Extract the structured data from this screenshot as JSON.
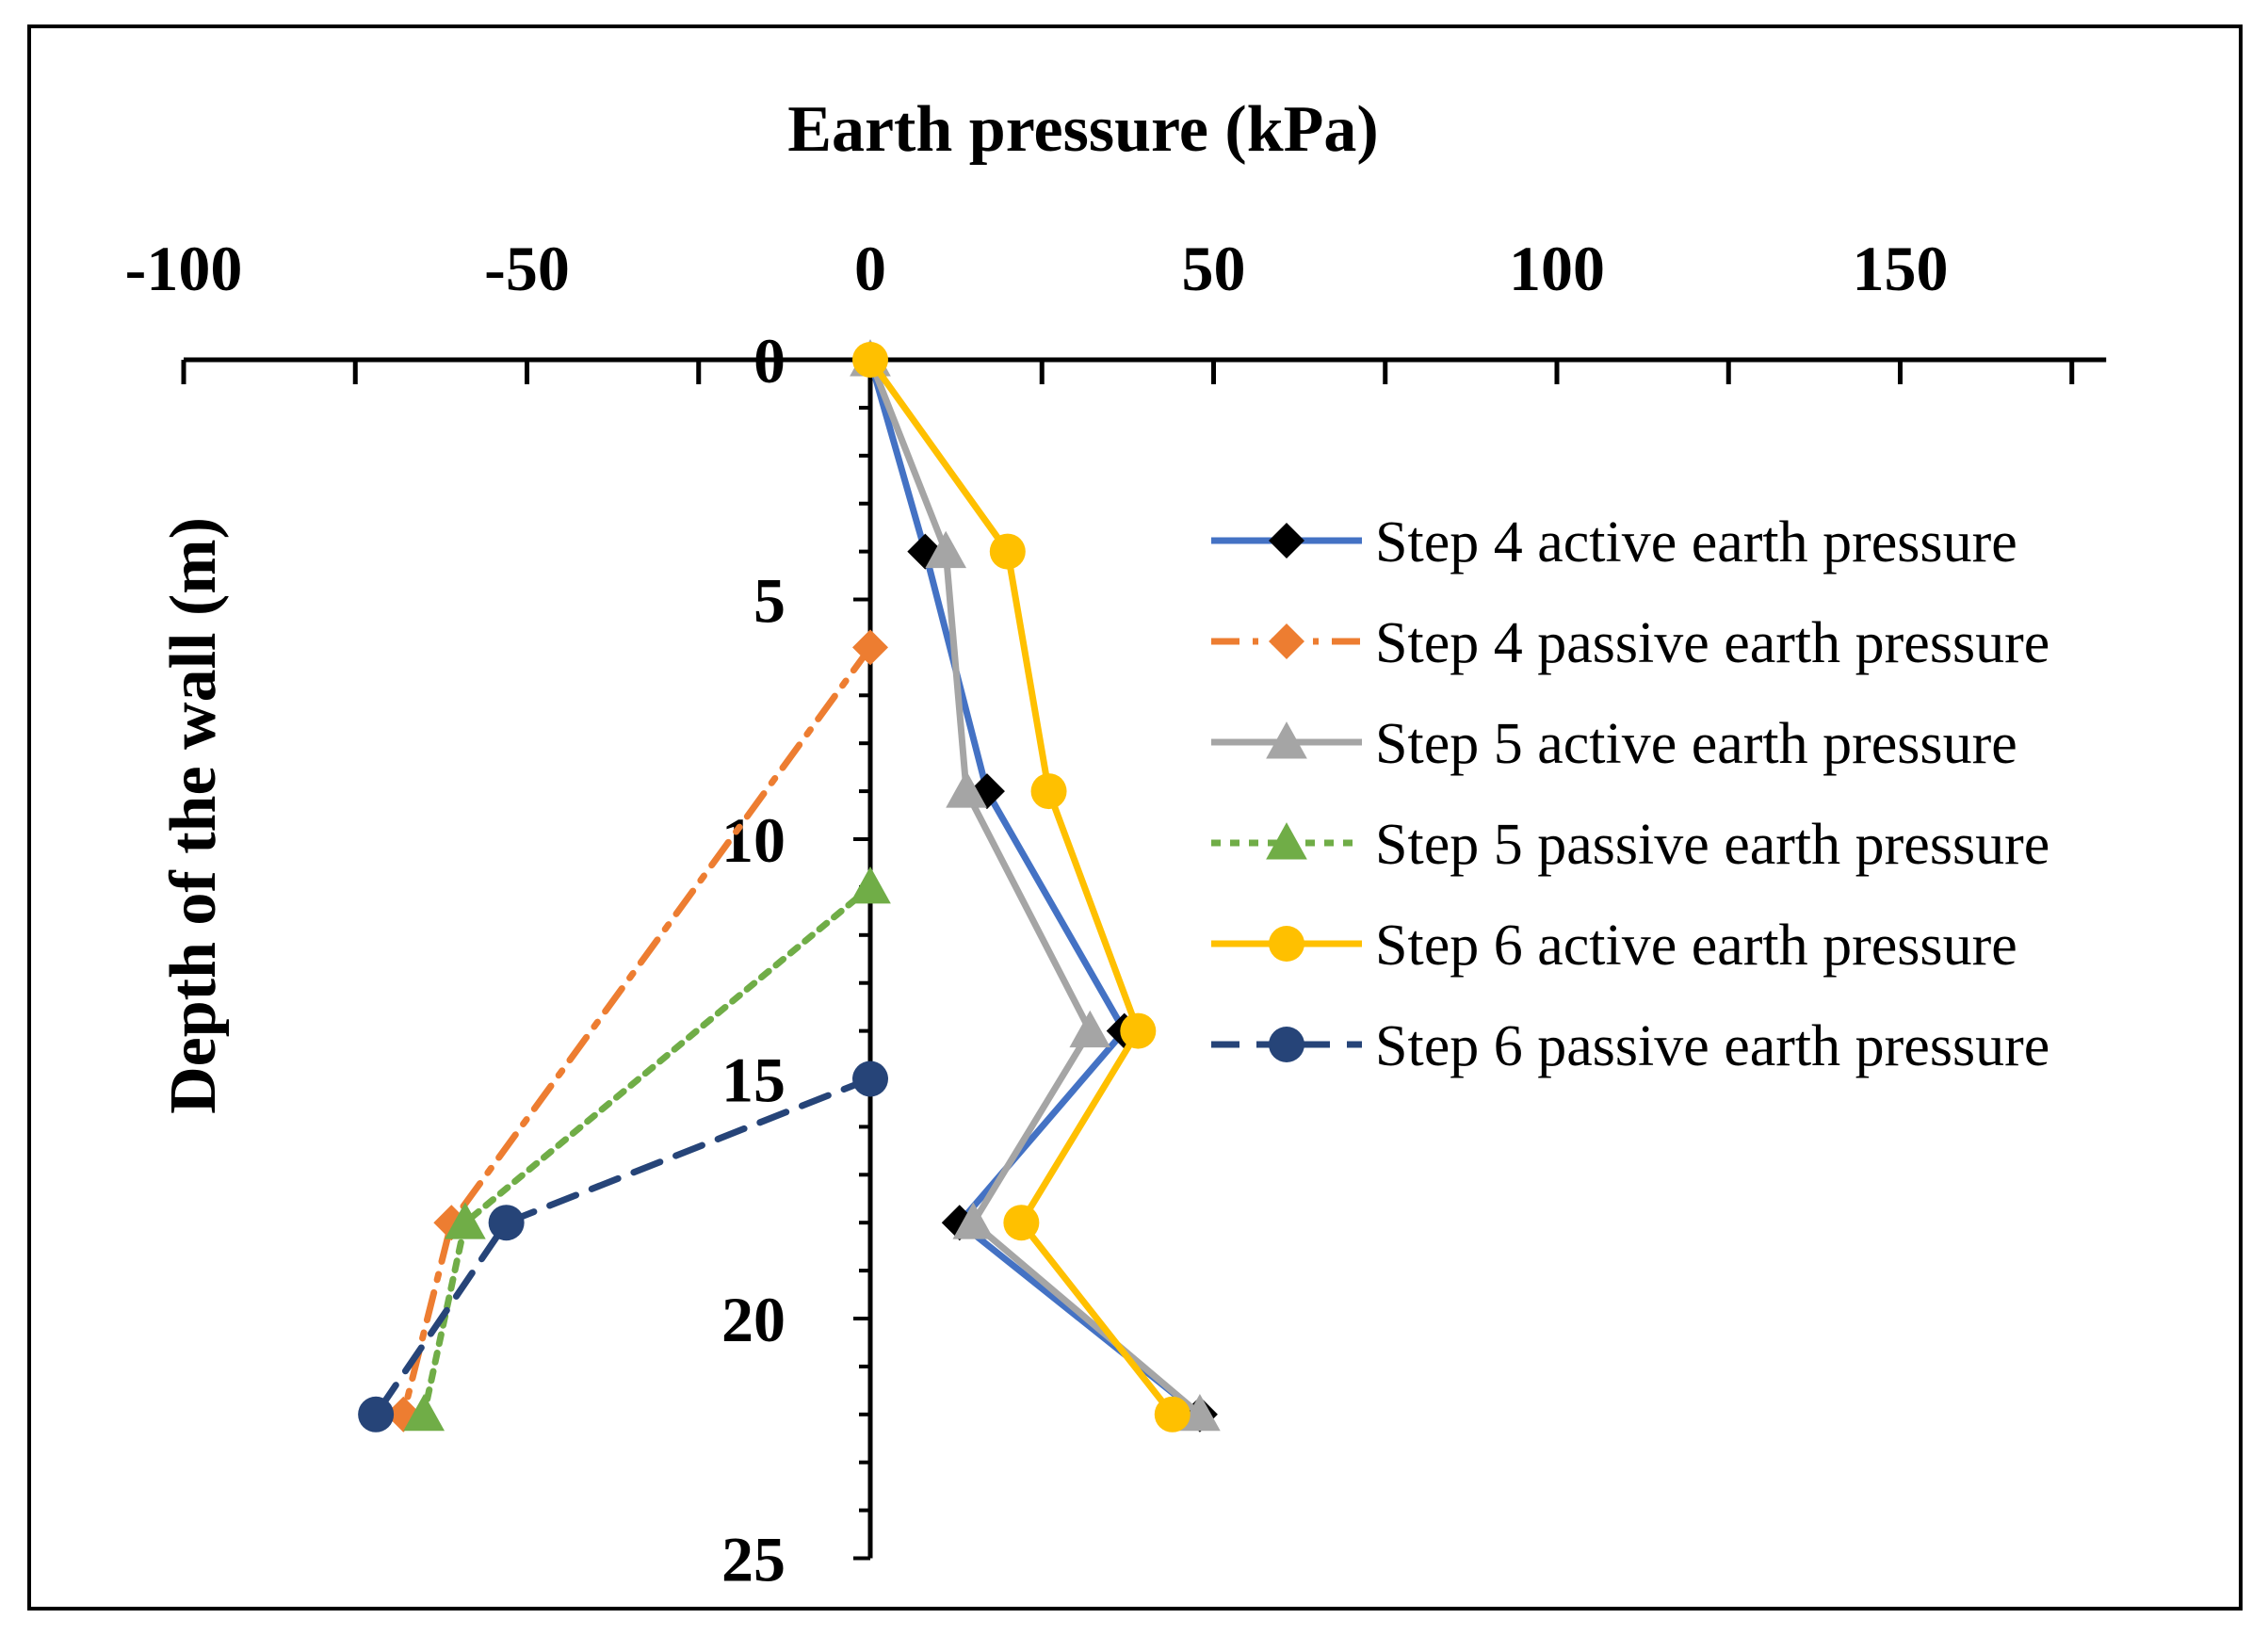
{
  "chart_data": {
    "type": "line",
    "xlabel": "Earth pressure (kPa)",
    "ylabel": "Depth of the wall (m)",
    "xlim": [
      -100,
      180
    ],
    "ylim": [
      0,
      25
    ],
    "x_ticks": [
      -100,
      -50,
      0,
      50,
      100,
      150
    ],
    "y_ticks": [
      0,
      5,
      10,
      15,
      20,
      25
    ],
    "legend_position": "right",
    "series": [
      {
        "name": "Step 4 active earth pressure",
        "color": "#4472C4",
        "marker": "diamond",
        "marker_color": "#000000",
        "dash": "solid",
        "points": [
          [
            0,
            0
          ],
          [
            8,
            4
          ],
          [
            17,
            9
          ],
          [
            37,
            14
          ],
          [
            13,
            18
          ],
          [
            48,
            22
          ]
        ]
      },
      {
        "name": "Step 4 passive earth pressure",
        "color": "#ED7D31",
        "marker": "diamond",
        "marker_color": "#ED7D31",
        "dash": "dashdot",
        "points": [
          [
            0,
            6
          ],
          [
            -61,
            18
          ],
          [
            -68,
            22
          ]
        ]
      },
      {
        "name": "Step 5 active earth pressure",
        "color": "#A5A5A5",
        "marker": "triangle",
        "marker_color": "#A5A5A5",
        "dash": "solid",
        "points": [
          [
            0,
            0
          ],
          [
            11,
            4
          ],
          [
            14,
            9
          ],
          [
            32,
            14
          ],
          [
            15,
            18
          ],
          [
            48,
            22
          ]
        ]
      },
      {
        "name": "Step 5 passive earth pressure",
        "color": "#70AD47",
        "marker": "triangle",
        "marker_color": "#70AD47",
        "dash": "dotted",
        "points": [
          [
            0,
            11
          ],
          [
            -59,
            18
          ],
          [
            -65,
            22
          ]
        ]
      },
      {
        "name": "Step 6 active earth pressure",
        "color": "#FFC000",
        "marker": "circle",
        "marker_color": "#FFC000",
        "dash": "solid",
        "points": [
          [
            0,
            0
          ],
          [
            20,
            4
          ],
          [
            26,
            9
          ],
          [
            39,
            14
          ],
          [
            22,
            18
          ],
          [
            44,
            22
          ]
        ]
      },
      {
        "name": "Step 6 passive earth pressure",
        "color": "#264478",
        "marker": "circle",
        "marker_color": "#264478",
        "dash": "dashed",
        "points": [
          [
            0,
            15
          ],
          [
            -53,
            18
          ],
          [
            -72,
            22
          ]
        ]
      }
    ]
  }
}
